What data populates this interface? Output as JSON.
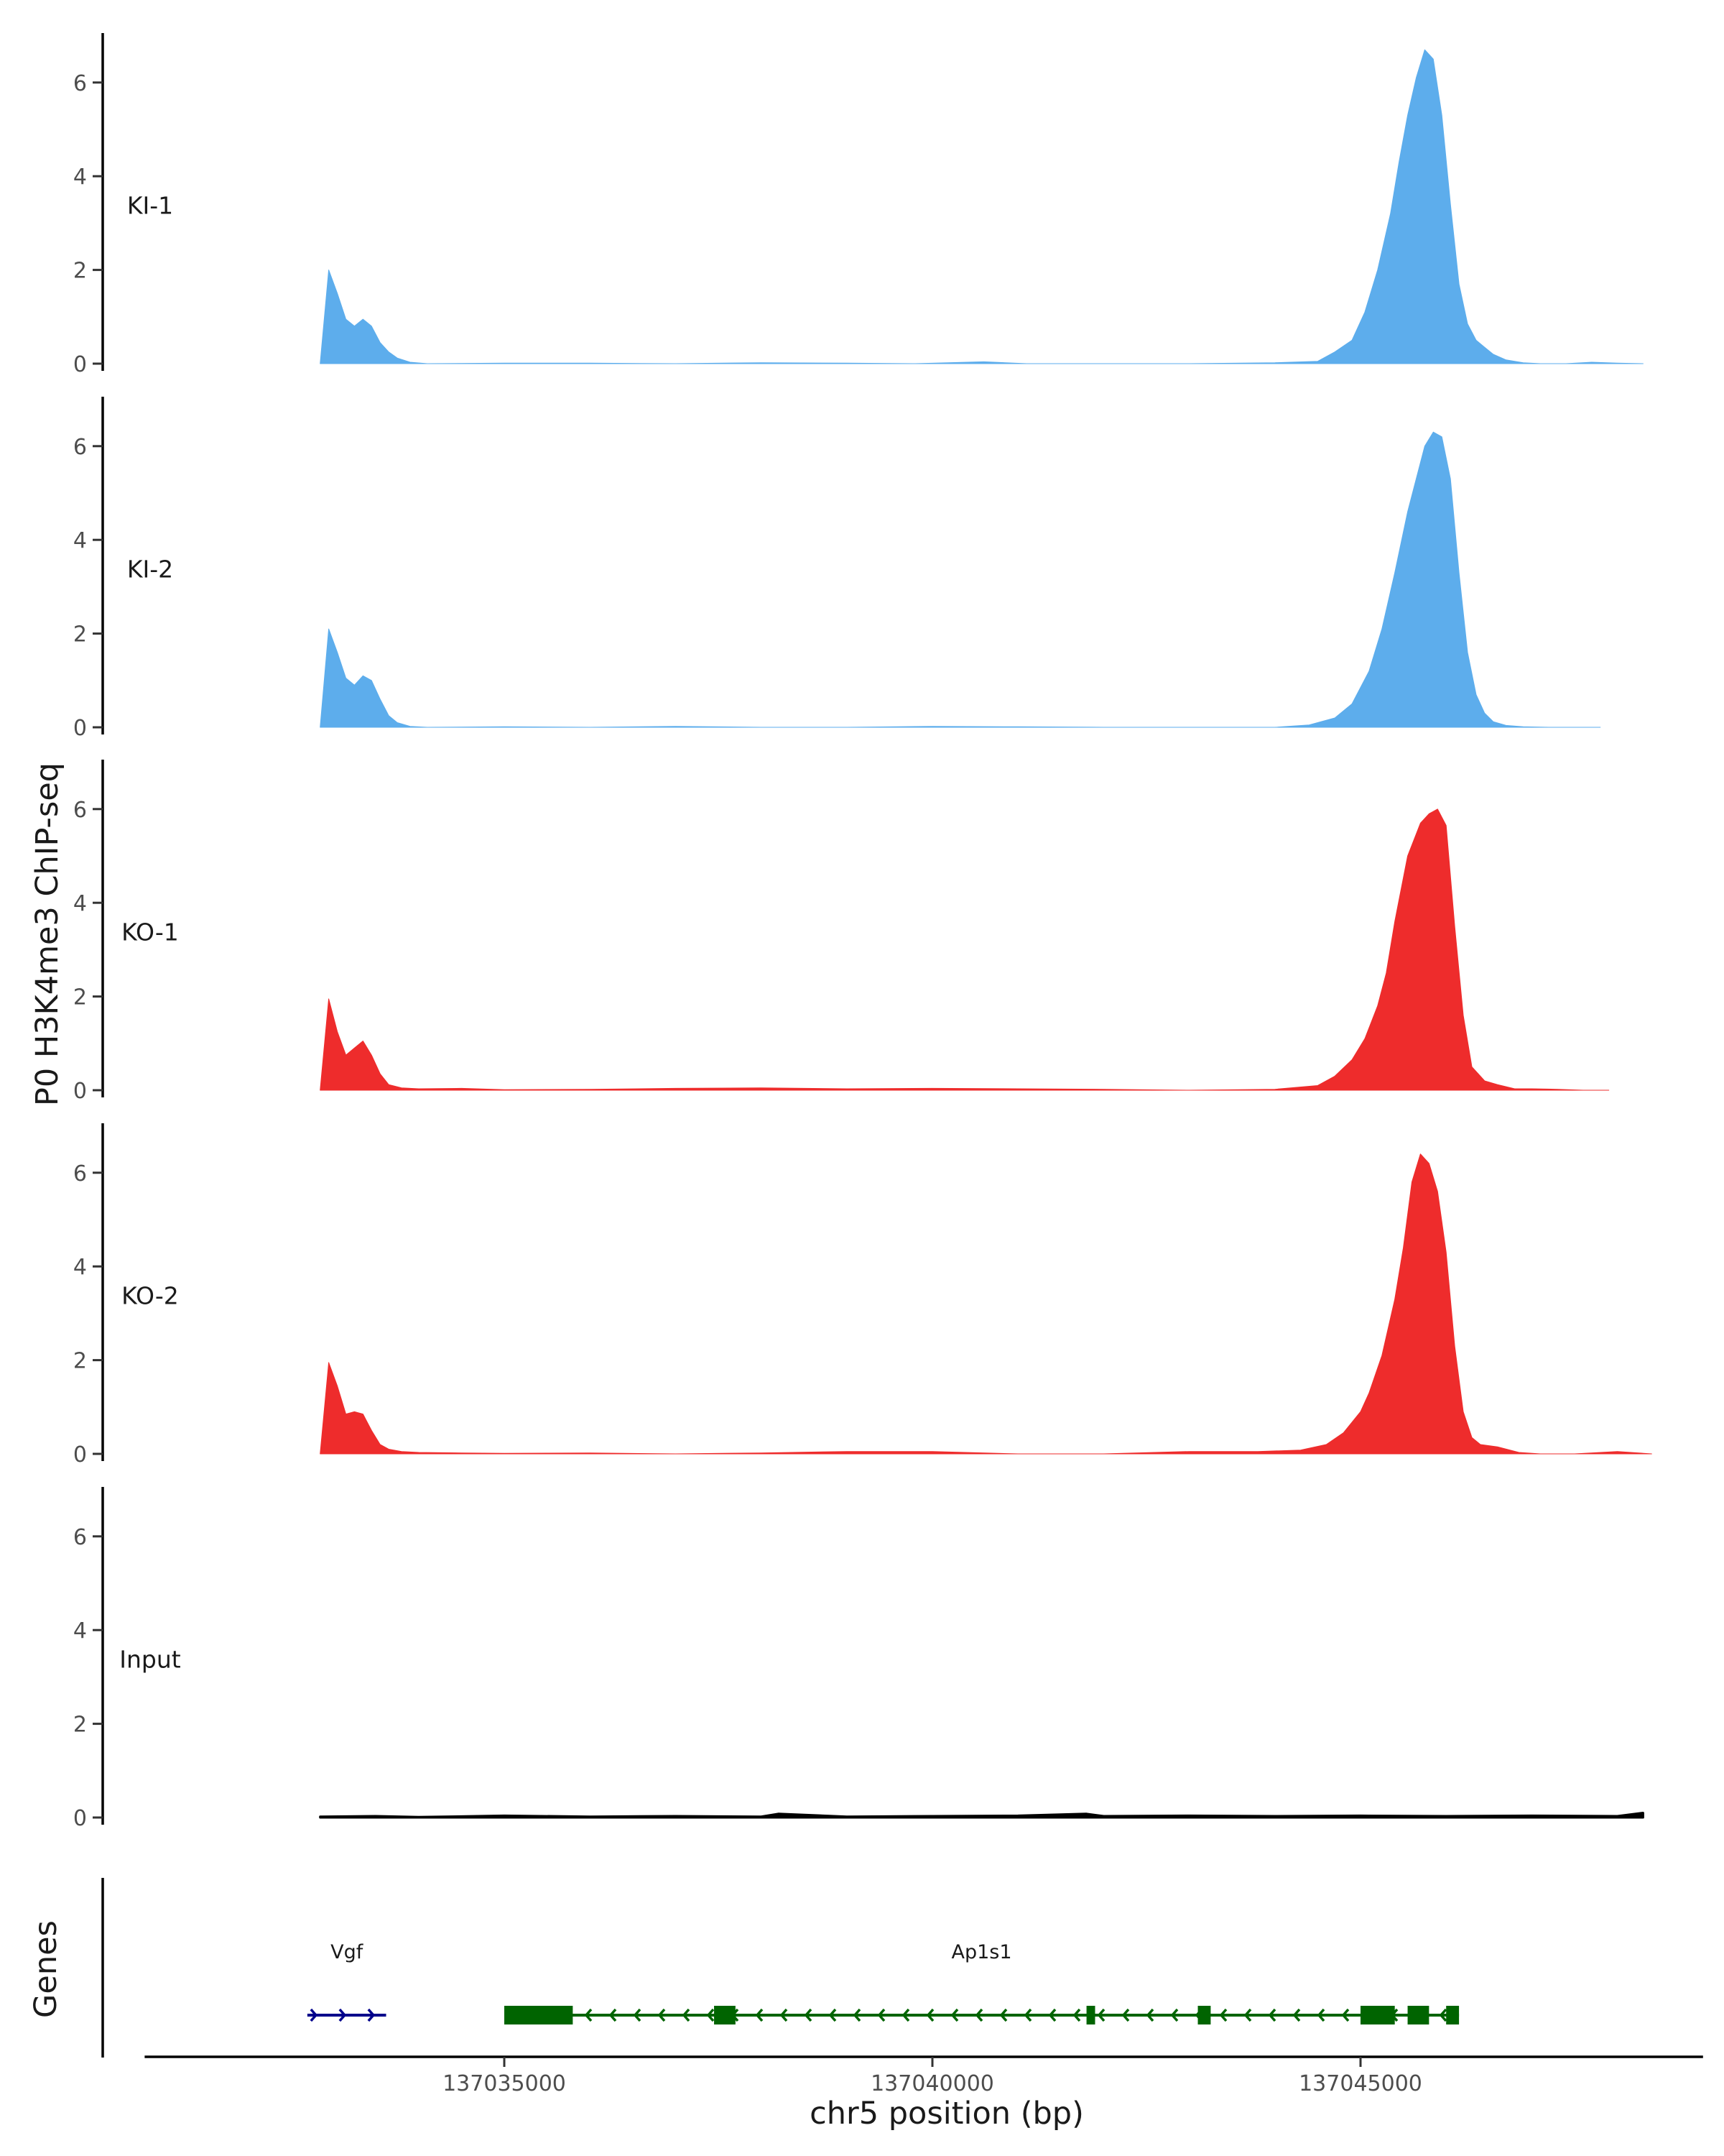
{
  "chart_data": {
    "type": "area",
    "title": "",
    "ylabel": "P0 H3K4me3 ChIP-seq",
    "xlabel": "chr5 position (bp)",
    "genes_label": "Genes",
    "xlim": [
      137030800,
      137049000
    ],
    "x_ticks": [
      137035000,
      137040000,
      137045000
    ],
    "x_tick_labels": [
      "137035000",
      "137040000",
      "137045000"
    ],
    "ylim": [
      0,
      7
    ],
    "y_ticks": [
      0,
      2,
      4,
      6
    ],
    "y_tick_labels": [
      "0",
      "2",
      "4",
      "6"
    ],
    "colors": {
      "KI": "#5DADEC",
      "KO": "#EE2C2C",
      "Input": "#000000",
      "gene_vgf": "#00008B",
      "gene_ap1s1": "#006400"
    },
    "tracks": [
      {
        "name": "KI-1",
        "color": "#5DADEC",
        "x": [
          137032850,
          137032950,
          137033050,
          137033150,
          137033250,
          137033350,
          137033450,
          137033550,
          137033650,
          137033750,
          137033900,
          137034100,
          137035000,
          137036000,
          137037000,
          137038000,
          137039000,
          137039800,
          137040600,
          137041100,
          137042000,
          137043000,
          137044000,
          137044500,
          137044700,
          137044900,
          137045050,
          137045200,
          137045350,
          137045450,
          137045550,
          137045650,
          137045750,
          137045850,
          137045950,
          137046050,
          137046150,
          137046250,
          137046350,
          137046450,
          137046550,
          137046700,
          137046900,
          137047100,
          137047400,
          137047700,
          137048000,
          137048300
        ],
        "values": [
          0.0,
          2.0,
          1.5,
          0.95,
          0.8,
          0.95,
          0.8,
          0.45,
          0.25,
          0.12,
          0.03,
          0.0,
          0.01,
          0.01,
          0.0,
          0.02,
          0.01,
          0.0,
          0.04,
          0.0,
          0.0,
          0.0,
          0.02,
          0.05,
          0.25,
          0.5,
          1.1,
          2.0,
          3.2,
          4.3,
          5.3,
          6.1,
          6.7,
          6.5,
          5.3,
          3.4,
          1.7,
          0.85,
          0.5,
          0.35,
          0.2,
          0.08,
          0.02,
          0.0,
          0.0,
          0.03,
          0.01,
          0.0
        ]
      },
      {
        "name": "KI-2",
        "color": "#5DADEC",
        "x": [
          137032850,
          137032950,
          137033050,
          137033150,
          137033250,
          137033350,
          137033450,
          137033550,
          137033650,
          137033750,
          137033900,
          137034100,
          137035000,
          137036000,
          137037000,
          137038000,
          137039000,
          137040000,
          137041000,
          137042000,
          137043000,
          137044000,
          137044400,
          137044700,
          137044900,
          137045100,
          137045250,
          137045400,
          137045550,
          137045650,
          137045750,
          137045850,
          137045950,
          137046050,
          137046150,
          137046250,
          137046350,
          137046450,
          137046550,
          137046700,
          137046900,
          137047200,
          137047500,
          137047800
        ],
        "values": [
          0.0,
          2.1,
          1.6,
          1.05,
          0.9,
          1.1,
          1.0,
          0.6,
          0.25,
          0.1,
          0.02,
          0.0,
          0.01,
          0.0,
          0.02,
          0.0,
          0.0,
          0.02,
          0.01,
          0.0,
          0.0,
          0.0,
          0.05,
          0.2,
          0.5,
          1.2,
          2.1,
          3.3,
          4.6,
          5.3,
          6.0,
          6.3,
          6.2,
          5.3,
          3.3,
          1.6,
          0.7,
          0.3,
          0.12,
          0.04,
          0.01,
          0.0,
          0.0,
          0.0
        ]
      },
      {
        "name": "KO-1",
        "color": "#EE2C2C",
        "x": [
          137032850,
          137032950,
          137033050,
          137033150,
          137033250,
          137033350,
          137033450,
          137033550,
          137033650,
          137033800,
          137034000,
          137034500,
          137035000,
          137036000,
          137037000,
          137038000,
          137039000,
          137040000,
          137041000,
          137042000,
          137043000,
          137044000,
          137044500,
          137044700,
          137044900,
          137045050,
          137045200,
          137045300,
          137045400,
          137045550,
          137045700,
          137045800,
          137045900,
          137046000,
          137046100,
          137046200,
          137046300,
          137046450,
          137046600,
          137046800,
          137047000,
          137047300,
          137047600,
          137047900
        ],
        "values": [
          0.0,
          1.95,
          1.25,
          0.75,
          0.9,
          1.05,
          0.75,
          0.35,
          0.12,
          0.05,
          0.03,
          0.04,
          0.01,
          0.02,
          0.04,
          0.05,
          0.03,
          0.04,
          0.03,
          0.02,
          0.0,
          0.02,
          0.1,
          0.3,
          0.65,
          1.1,
          1.8,
          2.5,
          3.6,
          5.0,
          5.7,
          5.9,
          6.0,
          5.65,
          3.5,
          1.6,
          0.5,
          0.2,
          0.12,
          0.03,
          0.03,
          0.02,
          0.0,
          0.0
        ]
      },
      {
        "name": "KO-2",
        "color": "#EE2C2C",
        "x": [
          137032850,
          137032950,
          137033050,
          137033150,
          137033250,
          137033350,
          137033450,
          137033550,
          137033650,
          137033800,
          137034000,
          137034500,
          137035000,
          137036000,
          137037000,
          137038000,
          137039000,
          137040000,
          137041000,
          137042000,
          137043000,
          137043800,
          137044300,
          137044600,
          137044800,
          137045000,
          137045100,
          137045250,
          137045400,
          137045500,
          137045600,
          137045700,
          137045800,
          137045900,
          137046000,
          137046100,
          137046200,
          137046300,
          137046400,
          137046600,
          137046850,
          137047100,
          137047500,
          137048000,
          137048400
        ],
        "values": [
          0.0,
          1.95,
          1.45,
          0.85,
          0.9,
          0.85,
          0.5,
          0.2,
          0.1,
          0.05,
          0.03,
          0.02,
          0.01,
          0.02,
          0.0,
          0.02,
          0.05,
          0.05,
          0.0,
          0.0,
          0.05,
          0.05,
          0.08,
          0.2,
          0.45,
          0.9,
          1.3,
          2.1,
          3.3,
          4.4,
          5.8,
          6.4,
          6.2,
          5.6,
          4.3,
          2.3,
          0.9,
          0.35,
          0.2,
          0.15,
          0.03,
          0.0,
          0.0,
          0.05,
          0.0
        ]
      },
      {
        "name": "Input",
        "color": "#000000",
        "x": [
          137032850,
          137033500,
          137034000,
          137035000,
          137036000,
          137037000,
          137038000,
          137038200,
          137039000,
          137040000,
          137041000,
          137041800,
          137042000,
          137043000,
          137044000,
          137045000,
          137046000,
          137047000,
          137048000,
          137048300
        ],
        "values": [
          0.02,
          0.03,
          0.01,
          0.04,
          0.02,
          0.03,
          0.02,
          0.08,
          0.02,
          0.03,
          0.04,
          0.08,
          0.03,
          0.04,
          0.03,
          0.04,
          0.03,
          0.04,
          0.03,
          0.1
        ]
      }
    ],
    "genes": [
      {
        "name": "Vgf",
        "strand": "+",
        "start": 137032700,
        "end": 137033620,
        "color": "#00008B",
        "exons": []
      },
      {
        "name": "Ap1s1",
        "strand": "-",
        "start": 137035000,
        "end": 137046150,
        "color": "#006400",
        "exons": [
          [
            137035000,
            137035800
          ],
          [
            137037450,
            137037700
          ],
          [
            137041800,
            137041900
          ],
          [
            137043100,
            137043250
          ],
          [
            137045000,
            137045400
          ],
          [
            137045550,
            137045800
          ],
          [
            137046000,
            137046150
          ]
        ]
      }
    ]
  }
}
